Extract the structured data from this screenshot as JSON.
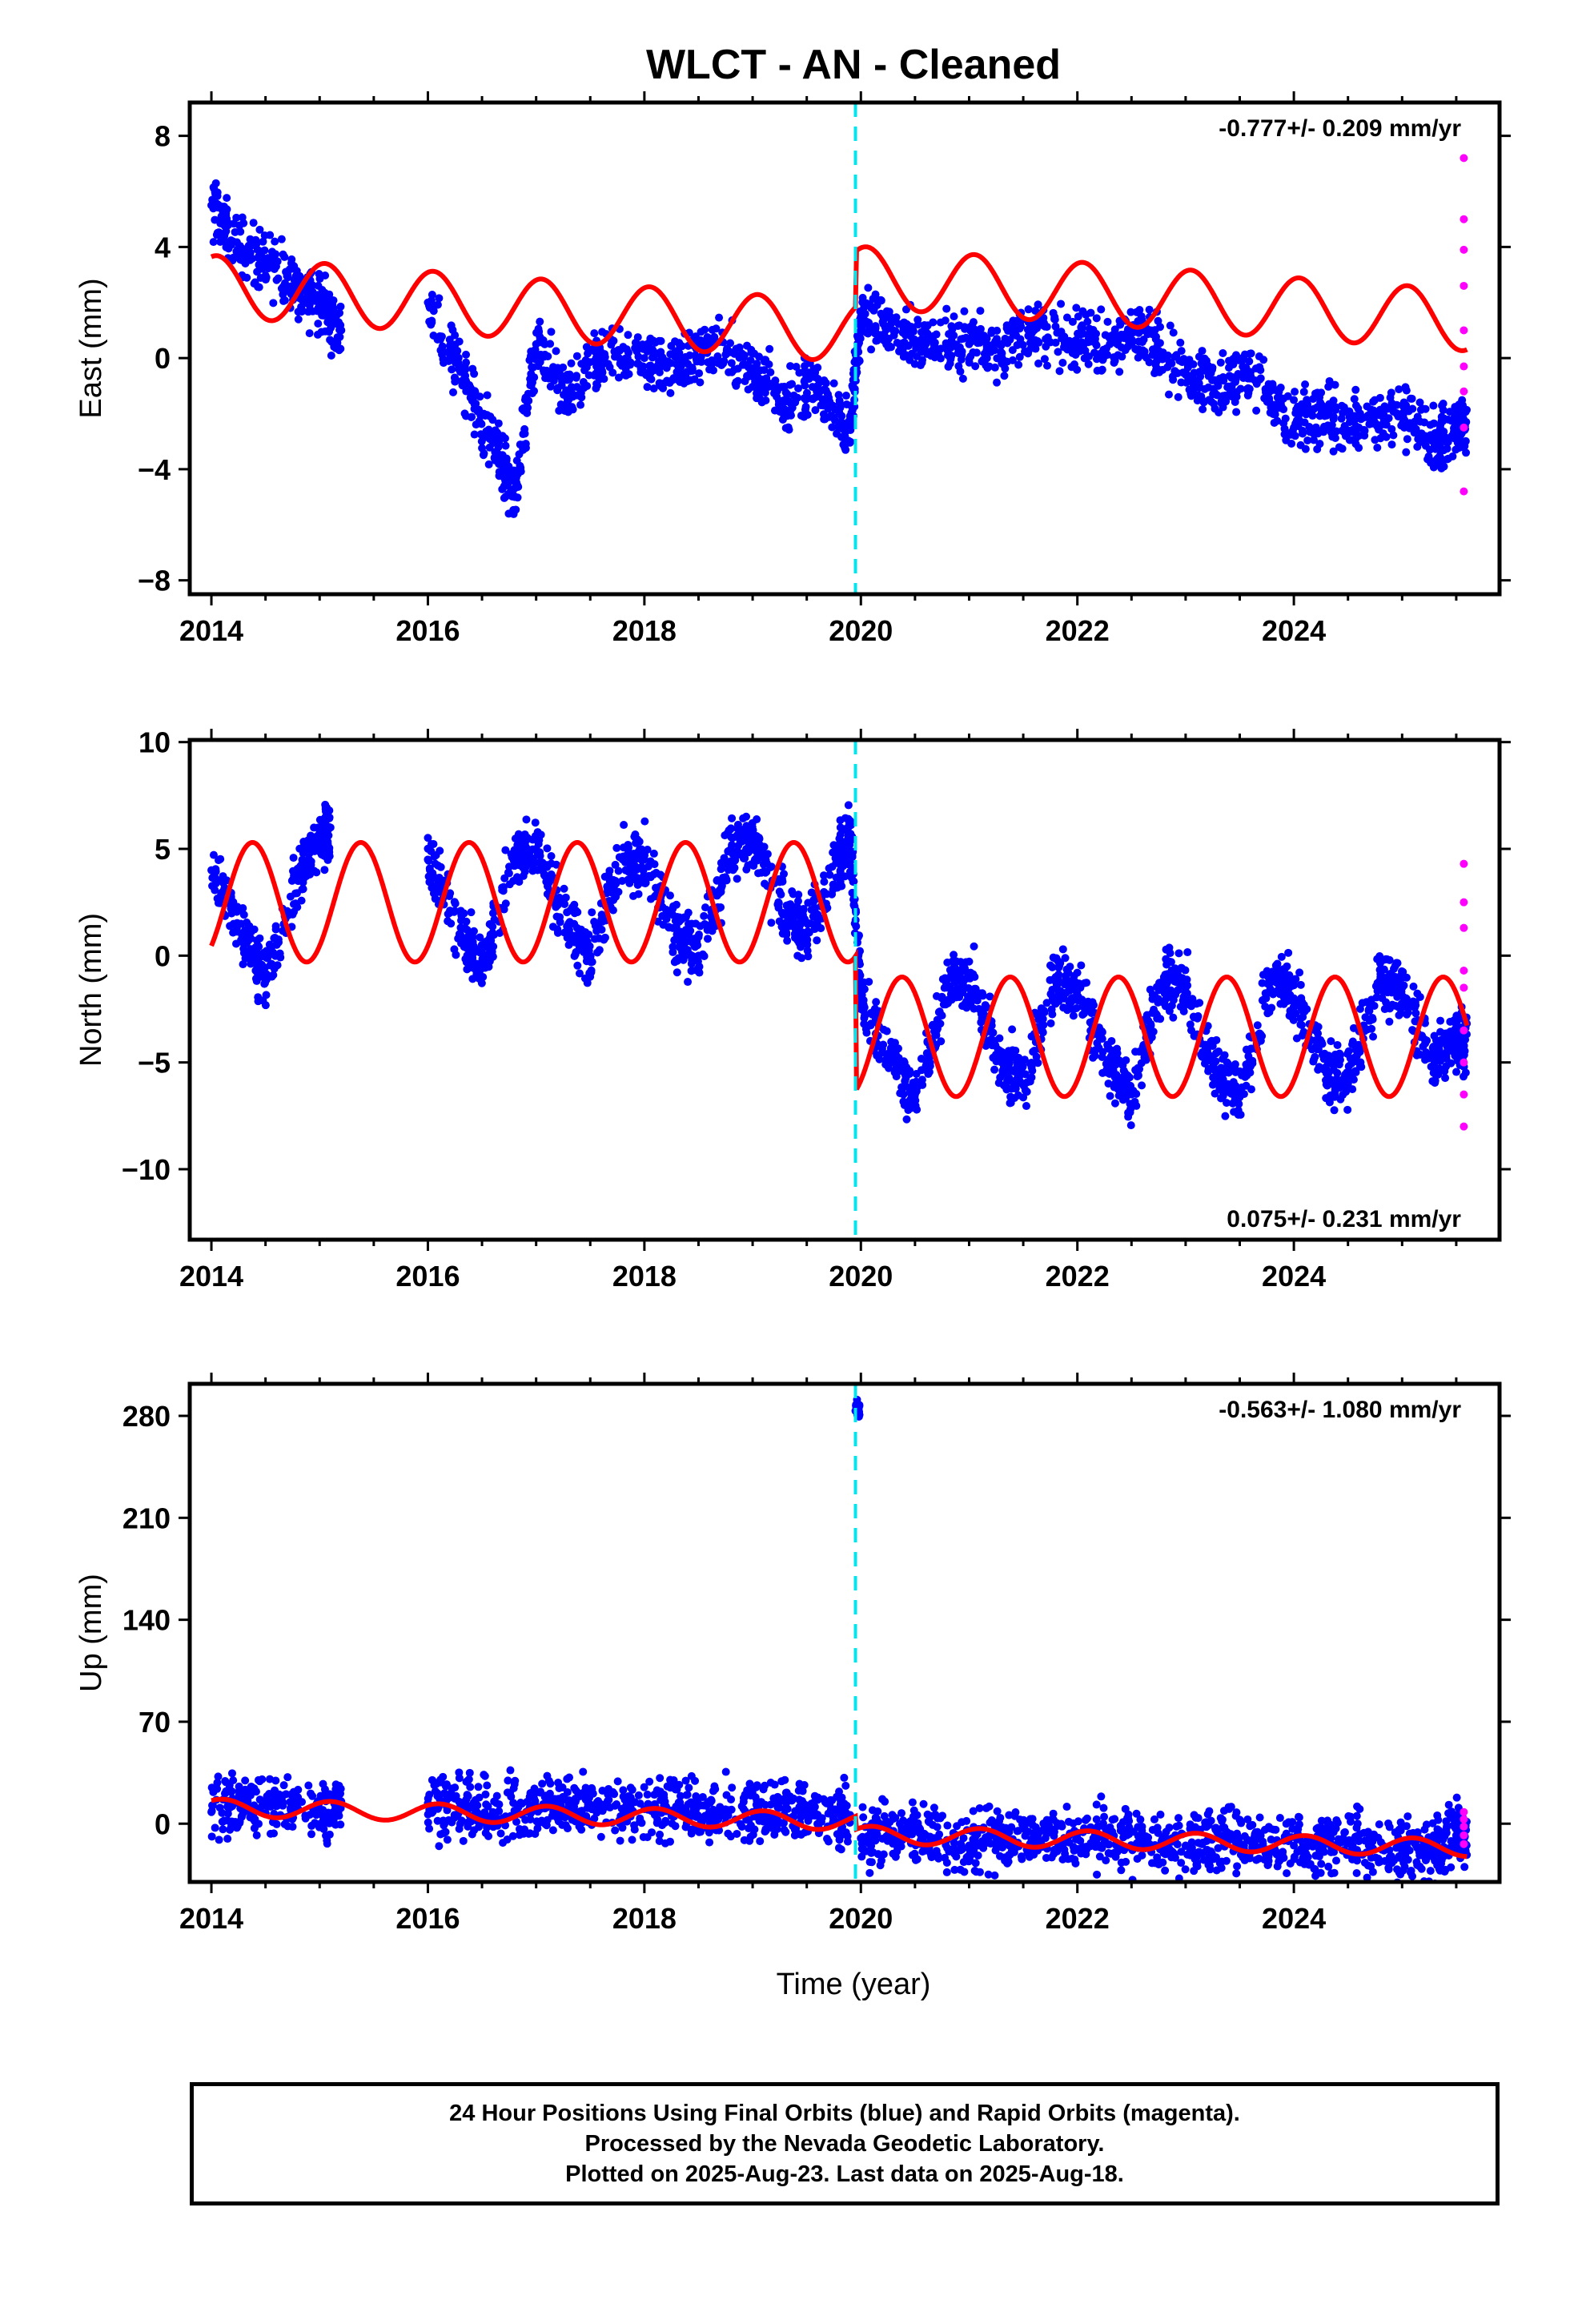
{
  "title": "WLCT  - AN - Cleaned",
  "xlabel": "Time (year)",
  "footer": [
    "24 Hour Positions Using Final Orbits (blue) and Rapid Orbits (magenta).",
    "Processed by the Nevada Geodetic Laboratory.",
    "Plotted on 2025-Aug-23. Last data on 2025-Aug-18."
  ],
  "colors": {
    "final": "#0000ff",
    "rapid": "#ff00ff",
    "model": "#ff0000",
    "step": "#00e5ee"
  },
  "chart_data": [
    {
      "type": "scatter",
      "ylabel": "East (mm)",
      "rate": "-0.777+/- 0.209 mm/yr",
      "xlim": [
        2013.8,
        2025.9
      ],
      "ylim": [
        -8.5,
        9.2
      ],
      "xticks": [
        2014,
        2016,
        2018,
        2020,
        2022,
        2024
      ],
      "yticks": [
        -8,
        -4,
        0,
        4,
        8
      ],
      "yticklabels": [
        "−8",
        "−4",
        "0",
        "4",
        "8"
      ],
      "step_x": 2019.95,
      "model": {
        "offset": 2.6,
        "trend": -0.28,
        "amp": 1.1,
        "phase": 0.05,
        "step": 2.0
      },
      "series": [
        {
          "name": "Final Orbits",
          "color": "blue",
          "x": [
            2014.0,
            2014.2,
            2014.5,
            2014.8,
            2015.0,
            2015.2,
            2016.0,
            2016.3,
            2016.6,
            2016.8,
            2017.0,
            2017.3,
            2017.6,
            2018.0,
            2018.3,
            2018.6,
            2019.0,
            2019.3,
            2019.6,
            2019.9,
            2020.0,
            2020.3,
            2020.6,
            2021.0,
            2021.3,
            2021.6,
            2022.0,
            2022.3,
            2022.6,
            2023.0,
            2023.3,
            2023.6,
            2024.0,
            2024.3,
            2024.6,
            2025.0,
            2025.3,
            2025.5
          ],
          "y": [
            5.5,
            4.2,
            3.5,
            2.5,
            2.0,
            1.0,
            2.0,
            -0.5,
            -3.0,
            -5.0,
            0.5,
            -1.5,
            0.0,
            0.0,
            -0.5,
            0.5,
            -0.5,
            -1.5,
            -1.0,
            -2.5,
            1.5,
            1.0,
            0.5,
            0.5,
            0.5,
            1.0,
            0.5,
            0.5,
            1.0,
            -0.5,
            -1.0,
            -0.5,
            -2.5,
            -2.0,
            -2.5,
            -2.0,
            -3.0,
            -2.5
          ]
        },
        {
          "name": "Rapid Orbits",
          "color": "magenta",
          "x": [
            2025.57,
            2025.57,
            2025.57,
            2025.57,
            2025.57,
            2025.57,
            2025.57,
            2025.57,
            2025.57
          ],
          "y": [
            7.2,
            5.0,
            3.9,
            2.6,
            1.0,
            -0.3,
            -1.2,
            -2.5,
            -4.8
          ]
        }
      ]
    },
    {
      "type": "scatter",
      "ylabel": "North (mm)",
      "rate": "0.075+/- 0.231 mm/yr",
      "xlim": [
        2013.8,
        2025.9
      ],
      "ylim": [
        -13.3,
        10.1
      ],
      "xticks": [
        2014,
        2016,
        2018,
        2020,
        2022,
        2024
      ],
      "yticks": [
        -10,
        -5,
        0,
        5,
        10
      ],
      "yticklabels": [
        "−10",
        "−5",
        "0",
        "5",
        "10"
      ],
      "step_x": 2019.95,
      "model": {
        "offset": 2.5,
        "trend": 0.0,
        "amp": 2.8,
        "phase": 0.38,
        "step": -6.3
      },
      "series": [
        {
          "name": "Final Orbits",
          "color": "blue",
          "x": [
            2014.0,
            2014.3,
            2014.5,
            2014.8,
            2015.0,
            2015.1,
            2016.0,
            2016.3,
            2016.5,
            2016.8,
            2017.0,
            2017.3,
            2017.5,
            2017.8,
            2018.0,
            2018.3,
            2018.5,
            2018.8,
            2019.0,
            2019.3,
            2019.5,
            2019.8,
            2019.9,
            2020.0,
            2020.3,
            2020.5,
            2020.8,
            2021.0,
            2021.3,
            2021.5,
            2021.8,
            2022.0,
            2022.3,
            2022.5,
            2022.8,
            2023.0,
            2023.3,
            2023.5,
            2023.8,
            2024.0,
            2024.3,
            2024.5,
            2024.8,
            2025.0,
            2025.3,
            2025.5
          ],
          "y": [
            4.0,
            1.0,
            -1.0,
            3.5,
            5.5,
            6.0,
            4.5,
            1.0,
            -0.5,
            4.5,
            5.0,
            1.5,
            0.0,
            4.5,
            4.5,
            1.0,
            0.0,
            5.0,
            5.5,
            2.0,
            1.0,
            4.5,
            5.5,
            -2.0,
            -5.0,
            -6.5,
            -1.5,
            -1.0,
            -5.0,
            -6.0,
            -1.0,
            -1.5,
            -5.0,
            -6.5,
            -1.0,
            -1.5,
            -5.5,
            -6.5,
            -1.0,
            -2.0,
            -5.5,
            -6.0,
            -1.0,
            -1.5,
            -5.0,
            -4.0
          ]
        },
        {
          "name": "Rapid Orbits",
          "color": "magenta",
          "x": [
            2025.57,
            2025.57,
            2025.57,
            2025.57,
            2025.57,
            2025.57,
            2025.57,
            2025.57,
            2025.57
          ],
          "y": [
            4.3,
            2.5,
            1.3,
            -0.7,
            -1.5,
            -3.5,
            -5.0,
            -6.5,
            -8.0
          ]
        }
      ]
    },
    {
      "type": "scatter",
      "ylabel": "Up (mm)",
      "rate": "-0.563+/- 1.080 mm/yr",
      "xlim": [
        2013.8,
        2025.9
      ],
      "ylim": [
        -40,
        302
      ],
      "xticks": [
        2014,
        2016,
        2018,
        2020,
        2022,
        2024
      ],
      "yticks": [
        0,
        70,
        140,
        210,
        280
      ],
      "yticklabels": [
        "0",
        "70",
        "140",
        "210",
        "280"
      ],
      "step_x": 2019.95,
      "model": {
        "offset": 11.0,
        "trend": -1.6,
        "amp": 6.0,
        "phase": 0.1,
        "step": -9.0
      },
      "series": [
        {
          "name": "Final Orbits",
          "color": "blue",
          "x": [
            2014.0,
            2014.3,
            2014.6,
            2015.0,
            2015.2,
            2016.0,
            2016.3,
            2016.6,
            2017.0,
            2017.3,
            2017.6,
            2018.0,
            2018.3,
            2018.6,
            2019.0,
            2019.3,
            2019.6,
            2019.9,
            2019.97,
            2020.0,
            2020.3,
            2020.6,
            2021.0,
            2021.3,
            2021.6,
            2022.0,
            2022.3,
            2022.6,
            2023.0,
            2023.3,
            2023.6,
            2024.0,
            2024.3,
            2024.6,
            2025.0,
            2025.3,
            2025.5
          ],
          "y": [
            8.0,
            15.0,
            12.0,
            10.0,
            15.0,
            14.0,
            12.0,
            8.0,
            12.0,
            15.0,
            10.0,
            10.0,
            12.0,
            8.0,
            8.0,
            10.0,
            6.0,
            6.0,
            285.0,
            -10.0,
            -5.0,
            -8.0,
            -15.0,
            -8.0,
            -10.0,
            -10.0,
            -8.0,
            -12.0,
            -15.0,
            -10.0,
            -12.0,
            -15.0,
            -10.0,
            -12.0,
            -20.0,
            -15.0,
            -8.0
          ]
        },
        {
          "name": "Rapid Orbits",
          "color": "magenta",
          "x": [
            2025.57,
            2025.57,
            2025.57,
            2025.57,
            2025.57
          ],
          "y": [
            8.0,
            3.0,
            -2.0,
            -8.0,
            -14.0
          ]
        }
      ]
    }
  ]
}
